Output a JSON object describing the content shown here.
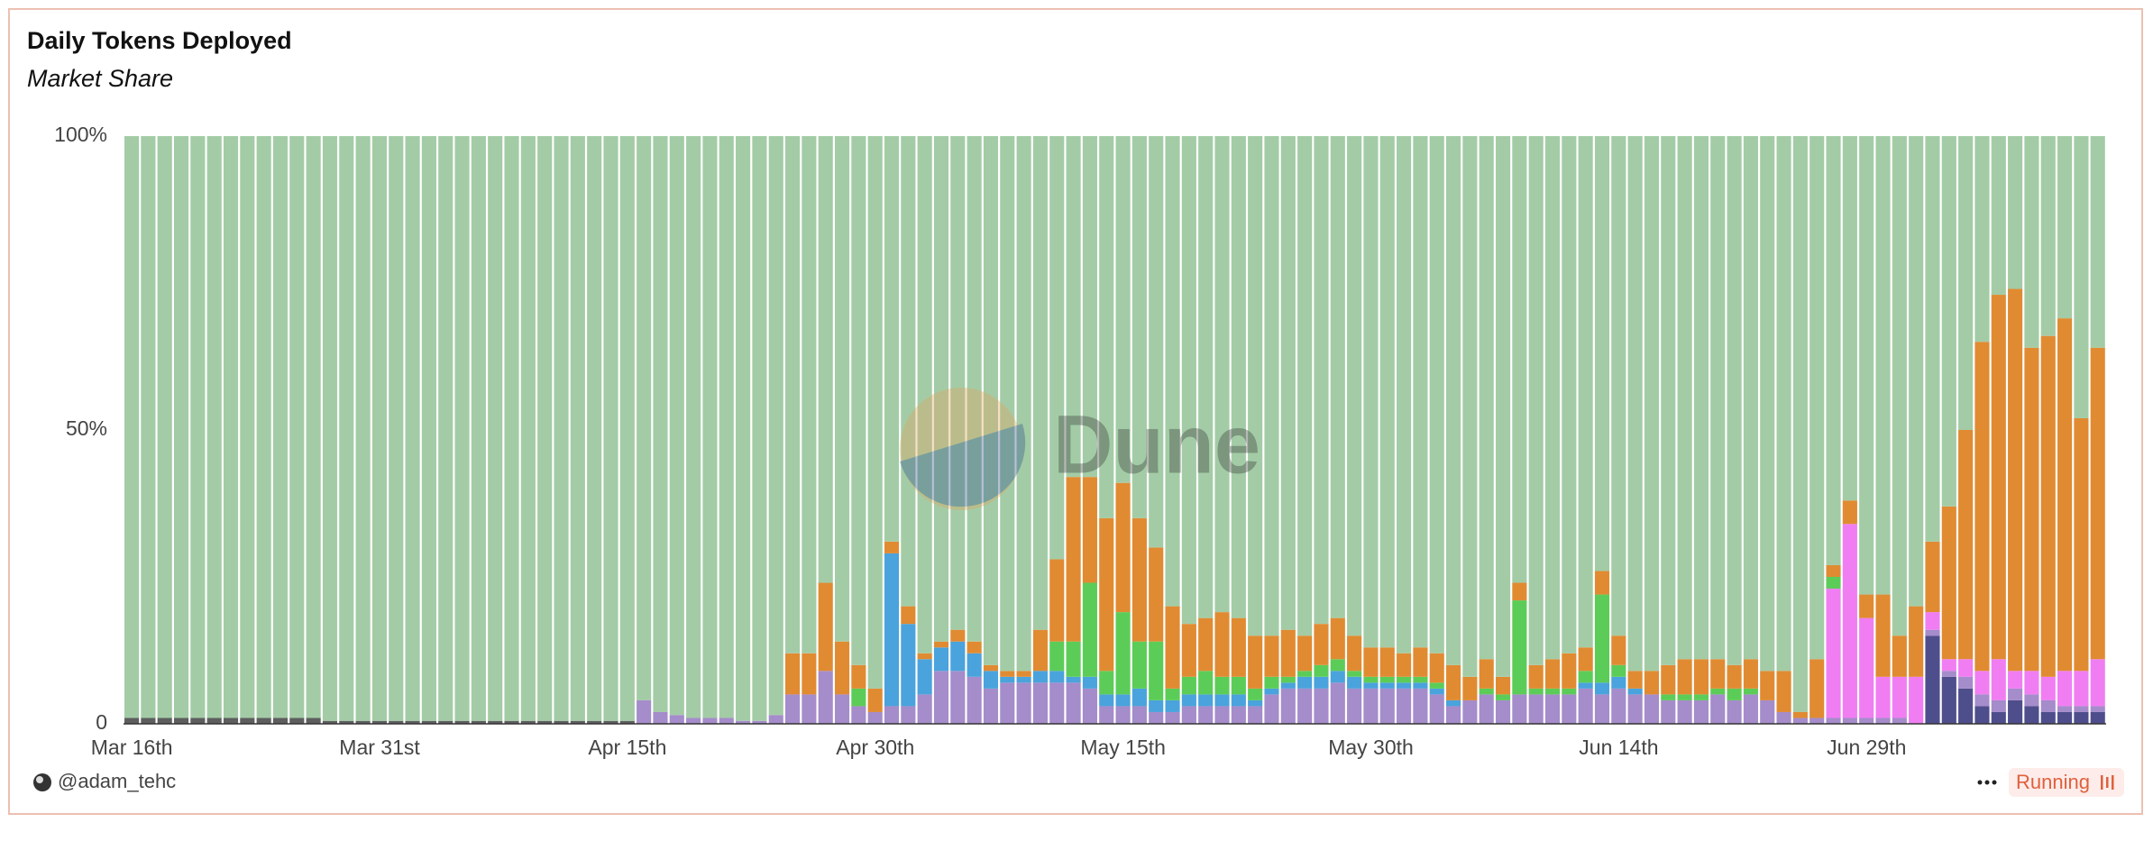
{
  "chart_data": {
    "type": "stacked_bar",
    "title": "Daily Tokens Deployed",
    "subtitle": "Market Share",
    "watermark": "Dune",
    "categories": [
      "Mar 16th",
      null,
      null,
      null,
      null,
      null,
      null,
      null,
      null,
      null,
      null,
      null,
      null,
      null,
      null,
      "Mar 31st",
      null,
      null,
      null,
      null,
      null,
      null,
      null,
      null,
      null,
      null,
      null,
      null,
      null,
      null,
      "Apr 15th",
      null,
      null,
      null,
      null,
      null,
      null,
      null,
      null,
      null,
      null,
      null,
      null,
      null,
      null,
      "Apr 30th",
      null,
      null,
      null,
      null,
      null,
      null,
      null,
      null,
      null,
      null,
      null,
      null,
      null,
      null,
      "May 15th",
      null,
      null,
      null,
      null,
      null,
      null,
      null,
      null,
      null,
      null,
      null,
      null,
      null,
      null,
      "May 30th",
      null,
      null,
      null,
      null,
      null,
      null,
      null,
      null,
      null,
      null,
      null,
      null,
      null,
      null,
      "Jun 14th",
      null,
      null,
      null,
      null,
      null,
      null,
      null,
      null,
      null,
      null,
      null,
      null,
      null,
      null,
      "Jun 29th",
      null,
      null,
      null,
      null,
      null,
      null,
      null,
      null,
      null,
      null,
      null,
      null,
      null,
      null
    ],
    "series": [
      {
        "color": "#5e5e5e",
        "values": [
          1,
          1,
          1,
          1,
          1,
          1,
          1,
          1,
          1,
          1,
          1,
          1,
          0.5,
          0.5,
          0.5,
          0.5,
          0.5,
          0.5,
          0.5,
          0.5,
          0.5,
          0.5,
          0.5,
          0.5,
          0.5,
          0.5,
          0.5,
          0.5,
          0.5,
          0.5,
          0.5,
          0,
          0,
          0,
          0,
          0,
          0,
          0,
          0,
          0,
          0,
          0,
          0,
          0,
          0,
          0,
          0,
          0,
          0,
          0,
          0,
          0,
          0,
          0,
          0,
          0,
          0,
          0,
          0,
          0,
          0,
          0,
          0,
          0,
          0,
          0,
          0,
          0,
          0,
          0,
          0,
          0,
          0,
          0,
          0,
          0,
          0,
          0,
          0,
          0,
          0,
          0,
          0,
          0,
          0,
          0,
          0,
          0,
          0,
          0,
          0,
          0,
          0,
          0,
          0,
          0,
          0,
          0,
          0,
          0,
          0,
          0,
          0,
          0,
          0,
          0,
          0,
          0,
          0,
          0,
          0,
          0,
          0,
          0,
          0,
          0,
          0,
          0,
          0,
          0
        ]
      },
      {
        "color": "#4f4e8c",
        "values": [
          0,
          0,
          0,
          0,
          0,
          0,
          0,
          0,
          0,
          0,
          0,
          0,
          0,
          0,
          0,
          0,
          0,
          0,
          0,
          0,
          0,
          0,
          0,
          0,
          0,
          0,
          0,
          0,
          0,
          0,
          0,
          0,
          0,
          0,
          0,
          0,
          0,
          0,
          0,
          0,
          0,
          0,
          0,
          0,
          0,
          0,
          0,
          0,
          0,
          0,
          0,
          0,
          0,
          0,
          0,
          0,
          0,
          0,
          0,
          0,
          0,
          0,
          0,
          0,
          0,
          0,
          0,
          0,
          0,
          0,
          0,
          0,
          0,
          0,
          0,
          0,
          0,
          0,
          0,
          0,
          0,
          0,
          0,
          0,
          0,
          0,
          0,
          0,
          0,
          0,
          0,
          0,
          0,
          0,
          0,
          0,
          0,
          0,
          0,
          0,
          0,
          0,
          0,
          0,
          0,
          0,
          0,
          0,
          0,
          15,
          8,
          6,
          3,
          2,
          4,
          3,
          2,
          2,
          2,
          2
        ]
      },
      {
        "color": "#a58cca",
        "values": [
          0,
          0,
          0,
          0,
          0,
          0,
          0,
          0,
          0,
          0,
          0,
          0,
          0,
          0,
          0,
          0,
          0,
          0,
          0,
          0,
          0,
          0,
          0,
          0,
          0,
          0,
          0,
          0,
          0,
          0,
          0,
          4,
          2,
          1.5,
          1,
          1,
          1,
          0.5,
          0.5,
          1.5,
          5,
          5,
          9,
          5,
          3,
          2,
          3,
          3,
          5,
          9,
          9,
          8,
          6,
          7,
          7,
          7,
          7,
          7,
          6,
          3,
          3,
          3,
          2,
          2,
          3,
          3,
          3,
          3,
          3,
          5,
          6,
          6,
          6,
          7,
          6,
          6,
          6,
          6,
          6,
          5,
          3,
          4,
          5,
          4,
          5,
          5,
          5,
          5,
          6,
          5,
          6,
          5,
          5,
          4,
          4,
          4,
          5,
          4,
          5,
          4,
          2,
          1,
          1,
          1,
          1,
          1,
          1,
          1,
          0,
          1,
          1,
          2,
          2,
          2,
          2,
          2,
          2,
          1,
          1,
          1
        ]
      },
      {
        "color": "#f07ef2",
        "values": [
          0,
          0,
          0,
          0,
          0,
          0,
          0,
          0,
          0,
          0,
          0,
          0,
          0,
          0,
          0,
          0,
          0,
          0,
          0,
          0,
          0,
          0,
          0,
          0,
          0,
          0,
          0,
          0,
          0,
          0,
          0,
          0,
          0,
          0,
          0,
          0,
          0,
          0,
          0,
          0,
          0,
          0,
          0,
          0,
          0,
          0,
          0,
          0,
          0,
          0,
          0,
          0,
          0,
          0,
          0,
          0,
          0,
          0,
          0,
          0,
          0,
          0,
          0,
          0,
          0,
          0,
          0,
          0,
          0,
          0,
          0,
          0,
          0,
          0,
          0,
          0,
          0,
          0,
          0,
          0,
          0,
          0,
          0,
          0,
          0,
          0,
          0,
          0,
          0,
          0,
          0,
          0,
          0,
          0,
          0,
          0,
          0,
          0,
          0,
          0,
          0,
          0,
          0,
          22,
          33,
          17,
          7,
          7,
          8,
          3,
          2,
          3,
          4,
          7,
          3,
          4,
          4,
          6,
          6,
          8
        ]
      },
      {
        "color": "#4aa3dc",
        "values": [
          0,
          0,
          0,
          0,
          0,
          0,
          0,
          0,
          0,
          0,
          0,
          0,
          0,
          0,
          0,
          0,
          0,
          0,
          0,
          0,
          0,
          0,
          0,
          0,
          0,
          0,
          0,
          0,
          0,
          0,
          0,
          0,
          0,
          0,
          0,
          0,
          0,
          0,
          0,
          0,
          0,
          0,
          0,
          0,
          0,
          0,
          26,
          14,
          6,
          4,
          5,
          4,
          3,
          1,
          1,
          2,
          2,
          1,
          2,
          2,
          2,
          3,
          2,
          2,
          2,
          2,
          2,
          2,
          1,
          1,
          1,
          2,
          2,
          2,
          2,
          1,
          1,
          1,
          1,
          1,
          1,
          0,
          0,
          0,
          0,
          0,
          0,
          0,
          1,
          2,
          2,
          1,
          0,
          0,
          0,
          0,
          0,
          0,
          0,
          0,
          0,
          0,
          0,
          0,
          0,
          0,
          0,
          0,
          0,
          0,
          0,
          0,
          0,
          0,
          0,
          0,
          0,
          0,
          0,
          0
        ]
      },
      {
        "color": "#5ccc58",
        "values": [
          0,
          0,
          0,
          0,
          0,
          0,
          0,
          0,
          0,
          0,
          0,
          0,
          0,
          0,
          0,
          0,
          0,
          0,
          0,
          0,
          0,
          0,
          0,
          0,
          0,
          0,
          0,
          0,
          0,
          0,
          0,
          0,
          0,
          0,
          0,
          0,
          0,
          0,
          0,
          0,
          0,
          0,
          0,
          0,
          3,
          0,
          0,
          0,
          0,
          0,
          0,
          0,
          0,
          0,
          0,
          0,
          5,
          6,
          16,
          4,
          14,
          8,
          10,
          2,
          3,
          4,
          3,
          3,
          2,
          2,
          1,
          1,
          2,
          2,
          1,
          1,
          1,
          1,
          1,
          1,
          0,
          0,
          1,
          1,
          16,
          1,
          1,
          1,
          2,
          15,
          2,
          0,
          0,
          1,
          1,
          1,
          1,
          2,
          1,
          0,
          0,
          0,
          0,
          2,
          0,
          0,
          0,
          0,
          0,
          0,
          0,
          0,
          0,
          0,
          0,
          0,
          0,
          0,
          0,
          0
        ]
      },
      {
        "color": "#e08b32",
        "values": [
          0,
          0,
          0,
          0,
          0,
          0,
          0,
          0,
          0,
          0,
          0,
          0,
          0,
          0,
          0,
          0,
          0,
          0,
          0,
          0,
          0,
          0,
          0,
          0,
          0,
          0,
          0,
          0,
          0,
          0,
          0,
          0,
          0,
          0,
          0,
          0,
          0,
          0,
          0,
          0,
          7,
          7,
          15,
          9,
          4,
          4,
          2,
          3,
          1,
          1,
          2,
          2,
          1,
          1,
          1,
          7,
          14,
          28,
          18,
          26,
          22,
          21,
          16,
          14,
          9,
          9,
          11,
          10,
          9,
          7,
          8,
          6,
          7,
          7,
          6,
          5,
          5,
          4,
          5,
          5,
          6,
          4,
          5,
          3,
          3,
          4,
          5,
          6,
          4,
          4,
          5,
          3,
          4,
          5,
          6,
          6,
          5,
          4,
          5,
          5,
          7,
          1,
          10,
          2,
          4,
          4,
          14,
          7,
          12,
          12,
          26,
          39,
          56,
          62,
          65,
          55,
          58,
          60,
          43,
          53
        ]
      },
      {
        "color": "#a3cca6",
        "values": [
          99,
          99,
          99,
          99,
          99,
          99,
          99,
          99,
          99,
          99,
          99,
          99,
          99.5,
          99.5,
          99.5,
          99.5,
          99.5,
          99.5,
          99.5,
          99.5,
          99.5,
          99.5,
          99.5,
          99.5,
          99.5,
          99.5,
          99.5,
          99.5,
          99.5,
          99.5,
          99.5,
          96,
          98,
          98.5,
          99,
          99,
          99,
          99.5,
          99.5,
          98.5,
          88,
          88,
          76,
          86,
          90,
          94,
          69,
          80,
          88,
          86,
          84,
          86,
          90,
          91,
          91,
          84,
          72,
          58,
          58,
          65,
          59,
          65,
          70,
          80,
          83,
          82,
          81,
          82,
          85,
          85,
          84,
          85,
          83,
          82,
          85,
          87,
          87,
          88,
          87,
          88,
          90,
          92,
          89,
          92,
          76,
          90,
          89,
          88,
          87,
          74,
          85,
          91,
          91,
          90,
          89,
          89,
          89,
          90,
          89,
          91,
          91,
          98,
          89,
          73,
          62,
          78,
          78,
          85,
          80,
          69,
          63,
          50,
          35,
          27,
          26,
          36,
          34,
          31,
          48,
          36
        ]
      }
    ],
    "ylim": [
      0,
      100
    ],
    "yticks": [
      0,
      {
        "value": 50,
        "label": "50%"
      },
      {
        "value": 100,
        "label": "100%"
      }
    ]
  },
  "footer": {
    "author": "@adam_tehc",
    "status": "Running"
  }
}
